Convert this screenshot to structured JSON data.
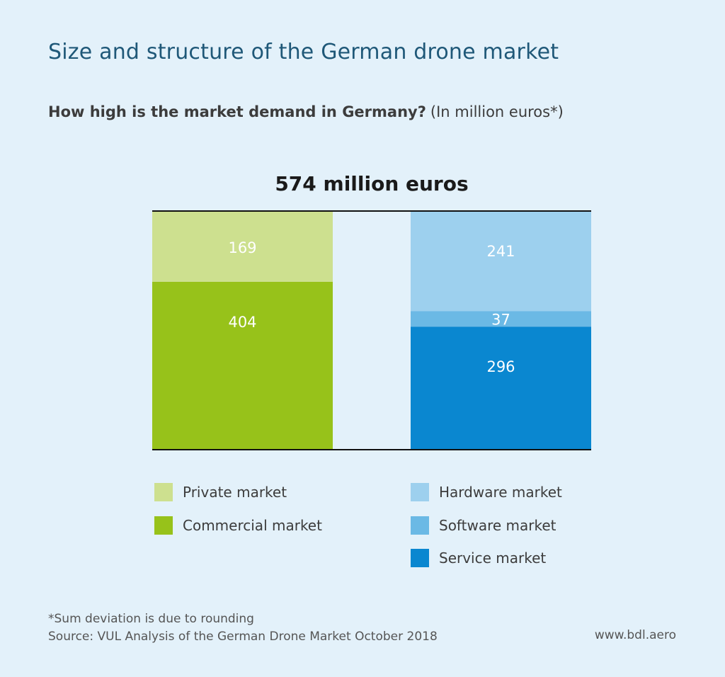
{
  "header": {
    "title": "Size and structure of the German drone market",
    "question_bold": "How high is the market demand in Germany?",
    "question_note": "(In million euros*)"
  },
  "chart_data": {
    "type": "bar",
    "stacked": true,
    "total_label": "574 million euros",
    "bars": [
      {
        "segments": [
          {
            "name": "Commercial market",
            "value": 404,
            "label": "404",
            "color": "#97c21a"
          },
          {
            "name": "Private market",
            "value": 169,
            "label": "169",
            "color": "#cde08f"
          }
        ]
      },
      {
        "segments": [
          {
            "name": "Service market",
            "value": 296,
            "label": "296",
            "color": "#0a87d0"
          },
          {
            "name": "Software market",
            "value": 37,
            "label": "37",
            "color": "#6bb9e5"
          },
          {
            "name": "Hardware market",
            "value": 241,
            "label": "241",
            "color": "#9dd0ee"
          }
        ]
      }
    ],
    "ylim": [
      0,
      574
    ],
    "grid": false,
    "legend_position": "bottom"
  },
  "legend": {
    "left": [
      {
        "label": "Private market",
        "color": "#cde08f"
      },
      {
        "label": "Commercial market",
        "color": "#97c21a"
      }
    ],
    "right": [
      {
        "label": "Hardware market",
        "color": "#9dd0ee"
      },
      {
        "label": "Software market",
        "color": "#6bb9e5"
      },
      {
        "label": "Service market",
        "color": "#0a87d0"
      }
    ]
  },
  "footer": {
    "footnote": "*Sum deviation is due to rounding",
    "source": "Source: VUL Analysis of the German Drone Market October 2018",
    "website": "www.bdl.aero"
  }
}
